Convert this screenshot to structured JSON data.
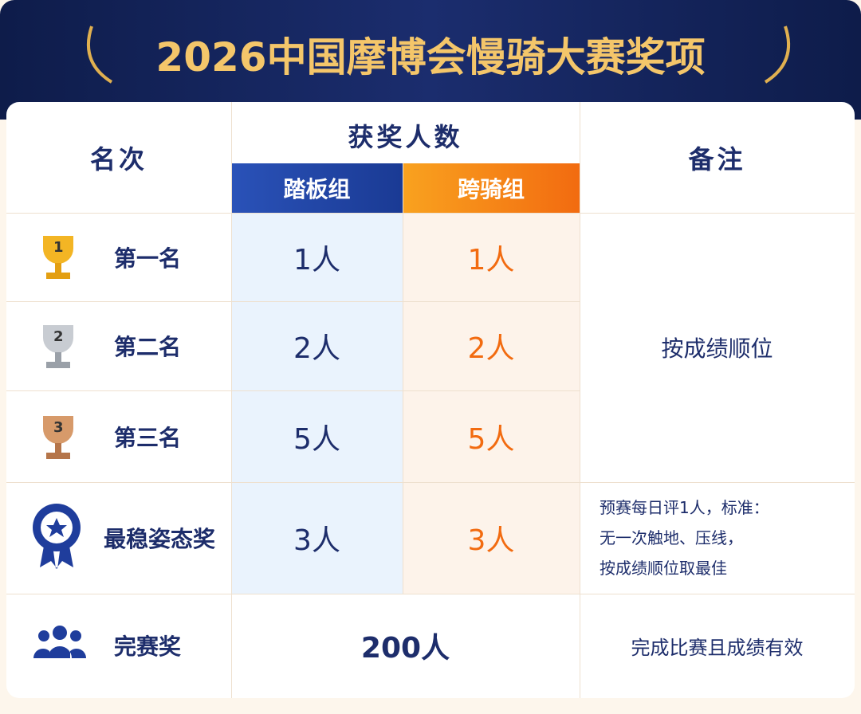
{
  "header": {
    "title": "2026中国摩博会慢骑大赛奖项"
  },
  "table": {
    "headers": {
      "rank": "名次",
      "winners": "获奖人数",
      "scooter": "踏板组",
      "motorcycle": "跨骑组",
      "note": "备注"
    },
    "rows": [
      {
        "badge": "1",
        "rank": "第一名",
        "scooter": "1人",
        "motorcycle": "1人"
      },
      {
        "badge": "2",
        "rank": "第二名",
        "scooter": "2人",
        "motorcycle": "2人"
      },
      {
        "badge": "3",
        "rank": "第三名",
        "scooter": "5人",
        "motorcycle": "5人"
      },
      {
        "rank": "最稳姿态奖",
        "scooter": "3人",
        "motorcycle": "3人",
        "note": [
          "预赛每日评1人，标准：",
          "无一次触地、压线，",
          "按成绩顺位取最佳"
        ]
      },
      {
        "rank": "完赛奖",
        "both": "200人",
        "note": "完成比赛且成绩有效"
      }
    ],
    "merged_note": "按成绩顺位"
  }
}
